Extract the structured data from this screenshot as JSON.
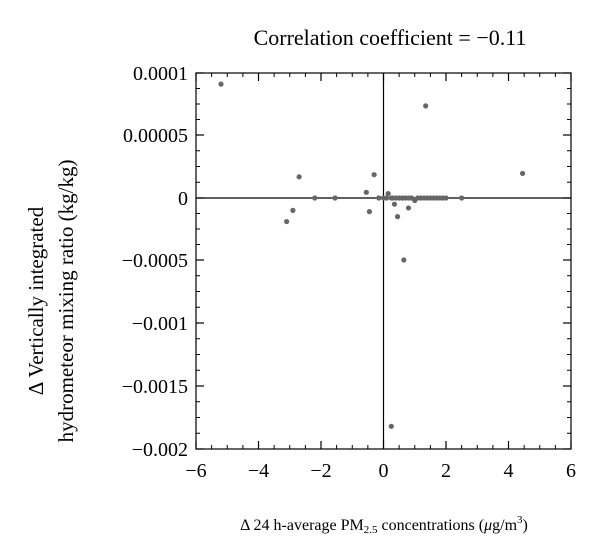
{
  "chart_data": {
    "type": "scatter",
    "title": "Correlation coefficient = −0.11",
    "xlabel": {
      "prefix": "Δ 24 h-average PM",
      "subscript": "2.5",
      "middle": " concentrations (",
      "mu": "μ",
      "unit": "g/m",
      "superscript": "3",
      "close": ")"
    },
    "ylabel_lines": [
      "Δ Vertically integrated",
      "hydrometeor mixing ratio (kg/kg)"
    ],
    "xlim": [
      -6,
      6
    ],
    "ylim": [
      -0.002,
      0.0001
    ],
    "x_ticks": [
      -6,
      -4,
      -2,
      0,
      2,
      4,
      6
    ],
    "x_tick_labels": [
      "−6",
      "−4",
      "−2",
      "0",
      "2",
      "4",
      "6"
    ],
    "y_ticks": [
      0.0001,
      5e-05,
      0,
      -0.0005,
      -0.001,
      -0.0015,
      -0.002
    ],
    "y_tick_labels": [
      "0.0001",
      "0.00005",
      "0",
      "−0.0005",
      "−0.001",
      "−0.0015",
      "−0.002"
    ],
    "y_tick_positions_note": "",
    "marker_color": "#666666",
    "points": [
      {
        "x": -5.2,
        "y": 9.1e-05
      },
      {
        "x": -2.7,
        "y": 1.68e-05
      },
      {
        "x": -3.1,
        "y": -0.00019
      },
      {
        "x": -2.9,
        "y": -0.0001
      },
      {
        "x": -2.2,
        "y": 0.0
      },
      {
        "x": -1.55,
        "y": 0.0
      },
      {
        "x": -0.55,
        "y": 4.5e-06
      },
      {
        "x": -0.45,
        "y": -0.00011
      },
      {
        "x": -0.3,
        "y": 1.85e-05
      },
      {
        "x": -0.15,
        "y": 0.0
      },
      {
        "x": 0.0,
        "y": 0.0
      },
      {
        "x": 0.1,
        "y": 0.0
      },
      {
        "x": 0.15,
        "y": 3.5e-06
      },
      {
        "x": 0.25,
        "y": 0.0
      },
      {
        "x": 0.3,
        "y": 0.0
      },
      {
        "x": 0.35,
        "y": -5e-05
      },
      {
        "x": 0.4,
        "y": 0.0
      },
      {
        "x": 0.45,
        "y": -0.00015
      },
      {
        "x": 0.5,
        "y": 0.0
      },
      {
        "x": 0.6,
        "y": 0.0
      },
      {
        "x": 0.7,
        "y": 0.0
      },
      {
        "x": 0.8,
        "y": 0.0
      },
      {
        "x": 0.9,
        "y": 0.0
      },
      {
        "x": 1.0,
        "y": -2e-05
      },
      {
        "x": 1.1,
        "y": 0.0
      },
      {
        "x": 1.2,
        "y": 0.0
      },
      {
        "x": 1.3,
        "y": 0.0
      },
      {
        "x": 1.4,
        "y": 0.0
      },
      {
        "x": 1.5,
        "y": 0.0
      },
      {
        "x": 1.6,
        "y": 0.0
      },
      {
        "x": 1.7,
        "y": 0.0
      },
      {
        "x": 1.8,
        "y": 0.0
      },
      {
        "x": 1.9,
        "y": 0.0
      },
      {
        "x": 2.0,
        "y": 0.0
      },
      {
        "x": 2.5,
        "y": 0.0
      },
      {
        "x": 0.8,
        "y": -8e-05
      },
      {
        "x": 0.65,
        "y": -0.0005
      },
      {
        "x": 0.25,
        "y": -0.00182
      },
      {
        "x": 1.35,
        "y": 7.35e-05
      },
      {
        "x": 4.45,
        "y": 1.95e-05
      }
    ]
  }
}
